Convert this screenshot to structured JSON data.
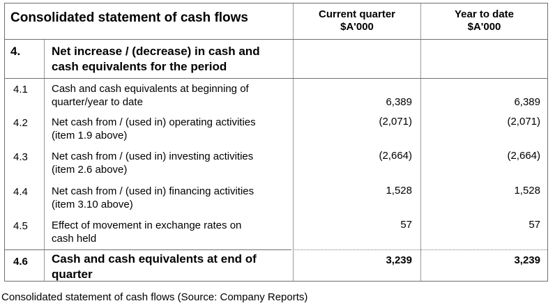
{
  "table": {
    "title": "Consolidated statement of cash flows",
    "columns": {
      "current_quarter": "Current quarter",
      "current_quarter_unit": "$A'000",
      "year_to_date": "Year to date",
      "year_to_date_unit": "$A'000"
    },
    "section": {
      "num": "4.",
      "label_line1": "Net increase / (decrease) in cash and",
      "label_line2": "cash equivalents for the period"
    },
    "rows": [
      {
        "num": "4.1",
        "line1": "Cash and cash equivalents at beginning of",
        "line2": "quarter/year to date",
        "current": "6,389",
        "ytd": "6,389"
      },
      {
        "num": "4.2",
        "line1": "Net cash from / (used in) operating activities",
        "line2": "(item 1.9 above)",
        "current": "(2,071)",
        "ytd": "(2,071)"
      },
      {
        "num": "4.3",
        "line1": "Net cash from / (used in) investing activities",
        "line2": "(item 2.6 above)",
        "current": "(2,664)",
        "ytd": "(2,664)"
      },
      {
        "num": "4.4",
        "line1": "Net cash from / (used in) financing activities",
        "line2": "(item 3.10 above)",
        "current": "1,528",
        "ytd": "1,528"
      },
      {
        "num": "4.5",
        "line1": "Effect of movement in exchange rates on",
        "line2": "cash held",
        "current": "57",
        "ytd": "57"
      }
    ],
    "total": {
      "num": "4.6",
      "line1": "Cash and cash equivalents at end of",
      "line2": "quarter",
      "current": "3,239",
      "ytd": "3,239"
    }
  },
  "caption": "Consolidated statement of cash flows (Source: Company Reports)"
}
